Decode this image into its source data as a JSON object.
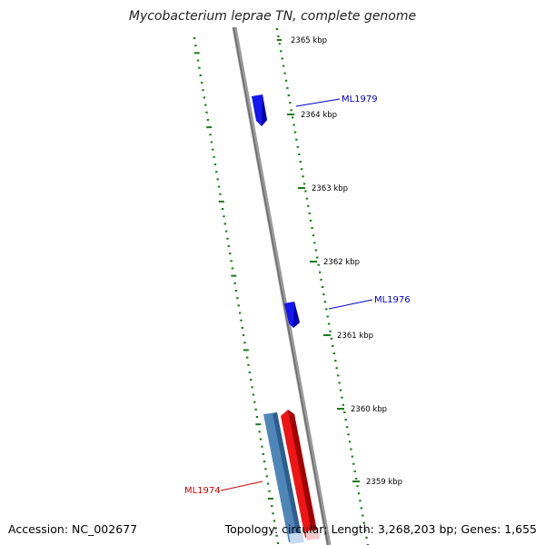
{
  "title": "Mycobacterium leprae TN, complete genome",
  "footer": {
    "accession": "Accession: NC_002677",
    "summary": "Topology: circular; Length: 3,268,203 bp; Genes: 1,655"
  },
  "ticks": [
    {
      "label": "2365 kbp"
    },
    {
      "label": "2364 kbp"
    },
    {
      "label": "2363 kbp"
    },
    {
      "label": "2362 kbp"
    },
    {
      "label": "2361 kbp"
    },
    {
      "label": "2360 kbp"
    },
    {
      "label": "2359 kbp"
    }
  ],
  "genes": [
    {
      "label": "ML1979",
      "color": "#0000cc"
    },
    {
      "label": "ML1976",
      "color": "#0000cc"
    },
    {
      "label": "ML1974",
      "color": "#cc0000"
    }
  ],
  "colors": {
    "backbone": "#808080",
    "tick_marks": "#1a7a1a",
    "forward_gene": "#1010ee",
    "reverse_gene_red": "#ee1111",
    "reverse_gene_steel": "#4682b4"
  }
}
